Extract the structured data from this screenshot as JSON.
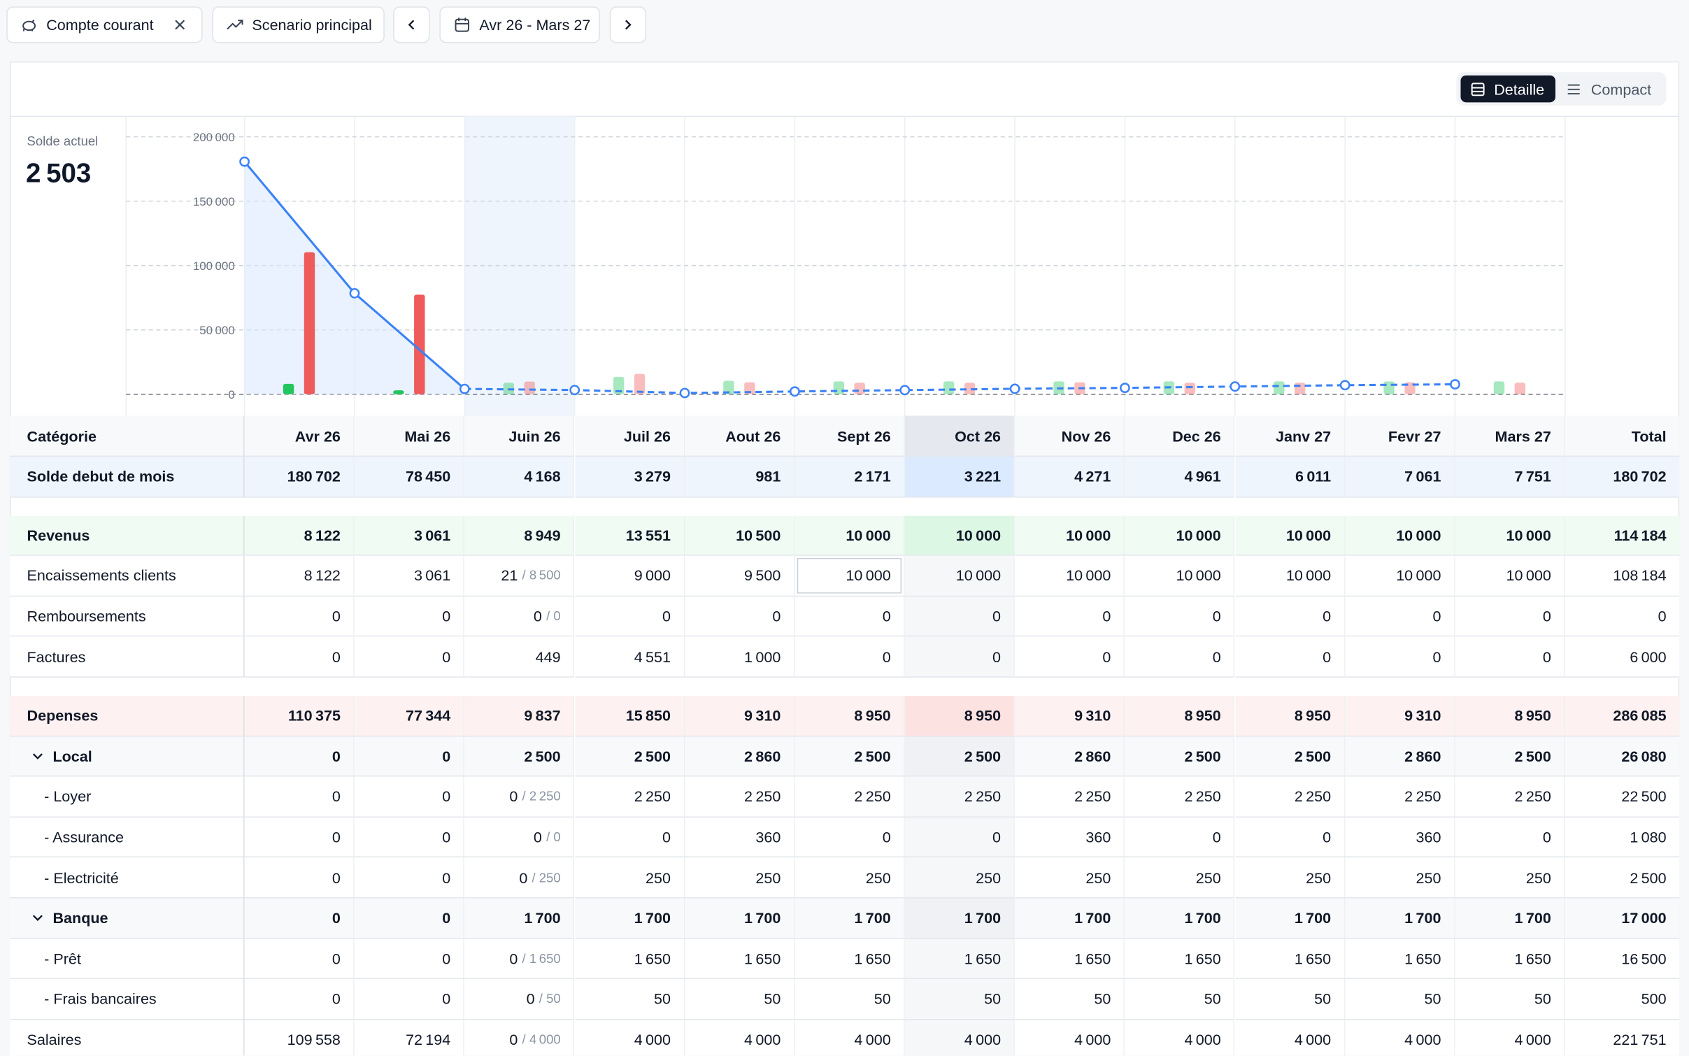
{
  "toolbar": {
    "account": "Compte courant",
    "scenario": "Scenario principal",
    "period": "Avr 26 - Mars 27"
  },
  "view_toggle": {
    "options": [
      "Detaille",
      "Compact"
    ],
    "active": 0
  },
  "summary": {
    "label": "Solde actuel",
    "value": "2 503"
  },
  "chart_data": {
    "type": "combo",
    "categories": [
      "Avr 26",
      "Mai 26",
      "Juin 26",
      "Juil 26",
      "Aout 26",
      "Sept 26",
      "Oct 26",
      "Nov 26",
      "Dec 26",
      "Janv 27",
      "Fevr 27",
      "Mars 27"
    ],
    "series": [
      {
        "kind": "line",
        "color": "#3b82f6",
        "values": [
          180702,
          78450,
          4168,
          3279,
          981,
          2171,
          3221,
          4271,
          4961,
          6011,
          7061,
          7751
        ]
      },
      {
        "kind": "bar",
        "color": "#22c55e",
        "values": [
          8122,
          3061,
          8949,
          13551,
          10500,
          10000,
          10000,
          10000,
          10000,
          10000,
          10000,
          10000
        ]
      },
      {
        "kind": "bar",
        "color": "#ef5a5a",
        "values": [
          110375,
          77344,
          9837,
          15850,
          9310,
          8950,
          8950,
          9310,
          8950,
          8950,
          9310,
          8950
        ]
      }
    ],
    "ylim": [
      -16700,
      215900
    ],
    "yticks": [
      0,
      {
        "value": 50000,
        "label": "50 000"
      },
      {
        "value": 100000,
        "label": "100 000"
      },
      {
        "value": 150000,
        "label": "150 000"
      },
      {
        "value": 200000,
        "label": "200 000"
      }
    ],
    "grid": true,
    "forecast": [
      false,
      false,
      true,
      true,
      true,
      true,
      true,
      true,
      true,
      true,
      true,
      true
    ],
    "highlight_index": 2
  },
  "table": {
    "first_column": "Catégorie",
    "last_column": "Total",
    "current_index": 6,
    "selected_cell": [
      2,
      5
    ],
    "rows": [
      {
        "kind": "balance",
        "label": "Solde debut de mois",
        "cells": [
          "180 702",
          "78 450",
          "4 168",
          "3 279",
          "981",
          "2 171",
          "3 221",
          "4 271",
          "4 961",
          "6 011",
          "7 061",
          "7 751"
        ],
        "total": "180 702"
      },
      {
        "kind": "revenue",
        "gap_before": true,
        "label": "Revenus",
        "cells": [
          "8 122",
          "3 061",
          "8 949",
          "13 551",
          "10 500",
          "10 000",
          "10 000",
          "10 000",
          "10 000",
          "10 000",
          "10 000",
          "10 000"
        ],
        "total": "114 184"
      },
      {
        "kind": "item",
        "label": "Encaissements clients",
        "cells": [
          "8 122",
          "3 061",
          {
            "actual": "21",
            "planned": "/ 8 500"
          },
          "9 000",
          "9 500",
          "10 000",
          "10 000",
          "10 000",
          "10 000",
          "10 000",
          "10 000",
          "10 000"
        ],
        "total": "108 184"
      },
      {
        "kind": "item",
        "label": "Remboursements",
        "cells": [
          "0",
          "0",
          {
            "actual": "0",
            "planned": "/ 0"
          },
          "0",
          "0",
          "0",
          "0",
          "0",
          "0",
          "0",
          "0",
          "0"
        ],
        "total": "0"
      },
      {
        "kind": "item",
        "label": "Factures",
        "cells": [
          "0",
          "0",
          "449",
          "4 551",
          "1 000",
          "0",
          "0",
          "0",
          "0",
          "0",
          "0",
          "0"
        ],
        "total": "6 000"
      },
      {
        "kind": "expense",
        "gap_before": true,
        "label": "Depenses",
        "cells": [
          "110 375",
          "77 344",
          "9 837",
          "15 850",
          "9 310",
          "8 950",
          "8 950",
          "9 310",
          "8 950",
          "8 950",
          "9 310",
          "8 950"
        ],
        "total": "286 085"
      },
      {
        "kind": "group",
        "label": "Local",
        "cells": [
          "0",
          "0",
          "2 500",
          "2 500",
          "2 860",
          "2 500",
          "2 500",
          "2 860",
          "2 500",
          "2 500",
          "2 860",
          "2 500"
        ],
        "total": "26 080"
      },
      {
        "kind": "sub",
        "label": "- Loyer",
        "cells": [
          "0",
          "0",
          {
            "actual": "0",
            "planned": "/ 2 250"
          },
          "2 250",
          "2 250",
          "2 250",
          "2 250",
          "2 250",
          "2 250",
          "2 250",
          "2 250",
          "2 250"
        ],
        "total": "22 500"
      },
      {
        "kind": "sub",
        "label": "- Assurance",
        "cells": [
          "0",
          "0",
          {
            "actual": "0",
            "planned": "/ 0"
          },
          "0",
          "360",
          "0",
          "0",
          "360",
          "0",
          "0",
          "360",
          "0"
        ],
        "total": "1 080"
      },
      {
        "kind": "sub",
        "label": "- Electricité",
        "cells": [
          "0",
          "0",
          {
            "actual": "0",
            "planned": "/ 250"
          },
          "250",
          "250",
          "250",
          "250",
          "250",
          "250",
          "250",
          "250",
          "250"
        ],
        "total": "2 500"
      },
      {
        "kind": "group",
        "label": "Banque",
        "cells": [
          "0",
          "0",
          "1 700",
          "1 700",
          "1 700",
          "1 700",
          "1 700",
          "1 700",
          "1 700",
          "1 700",
          "1 700",
          "1 700"
        ],
        "total": "17 000"
      },
      {
        "kind": "sub",
        "label": "- Prêt",
        "cells": [
          "0",
          "0",
          {
            "actual": "0",
            "planned": "/ 1 650"
          },
          "1 650",
          "1 650",
          "1 650",
          "1 650",
          "1 650",
          "1 650",
          "1 650",
          "1 650",
          "1 650"
        ],
        "total": "16 500"
      },
      {
        "kind": "sub",
        "label": "- Frais bancaires",
        "cells": [
          "0",
          "0",
          {
            "actual": "0",
            "planned": "/ 50"
          },
          "50",
          "50",
          "50",
          "50",
          "50",
          "50",
          "50",
          "50",
          "50"
        ],
        "total": "500"
      },
      {
        "kind": "item",
        "label": "Salaires",
        "cells": [
          "109 558",
          "72 194",
          {
            "actual": "0",
            "planned": "/ 4 000"
          },
          "4 000",
          "4 000",
          "4 000",
          "4 000",
          "4 000",
          "4 000",
          "4 000",
          "4 000",
          "4 000"
        ],
        "total": "221 751"
      }
    ]
  }
}
